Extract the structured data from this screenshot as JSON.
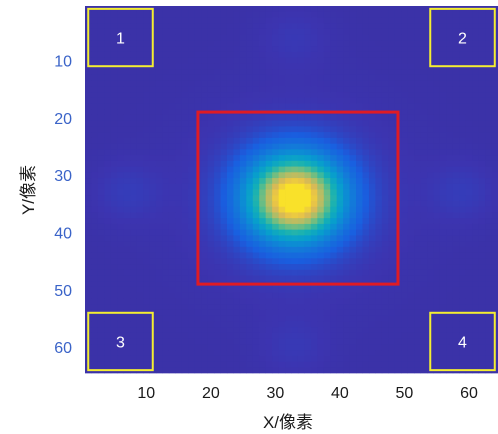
{
  "chart_data": {
    "type": "heatmap",
    "title": "",
    "xlabel": "X/像素",
    "ylabel": "Y/像素",
    "xlim": [
      0.5,
      64.5
    ],
    "ylim": [
      0.5,
      64.5
    ],
    "y_direction": "top-to-bottom",
    "x_ticks": [
      10,
      20,
      30,
      40,
      50,
      60
    ],
    "y_ticks": [
      10,
      20,
      30,
      40,
      50,
      60
    ],
    "x_tick_labels": [
      "10",
      "20",
      "30",
      "40",
      "50",
      "60"
    ],
    "y_tick_labels": [
      "10",
      "20",
      "30",
      "40",
      "50",
      "60"
    ],
    "colormap": "parula",
    "colors": {
      "background": "#3d2fa0",
      "low": "#3c34b0",
      "high": "#f9e12a",
      "roi_center_box": "#e01b24",
      "roi_corner_box": "#f4ee32",
      "y_tick_text": "#3a63c8",
      "x_tick_text": "#1a1a1a"
    },
    "spot": {
      "center_x": 33,
      "center_y": 34,
      "peak_level": 0.95
    },
    "center_roi": {
      "x_range": [
        18,
        49
      ],
      "y_range": [
        19,
        49
      ]
    },
    "corner_rois": [
      {
        "label": "1",
        "x_range": [
          1,
          11
        ],
        "y_range": [
          1,
          11
        ]
      },
      {
        "label": "2",
        "x_range": [
          54,
          64
        ],
        "y_range": [
          1,
          11
        ]
      },
      {
        "label": "3",
        "x_range": [
          1,
          11
        ],
        "y_range": [
          54,
          64
        ]
      },
      {
        "label": "4",
        "x_range": [
          54,
          64
        ],
        "y_range": [
          54,
          64
        ]
      }
    ],
    "grid": false,
    "legend": "none"
  }
}
